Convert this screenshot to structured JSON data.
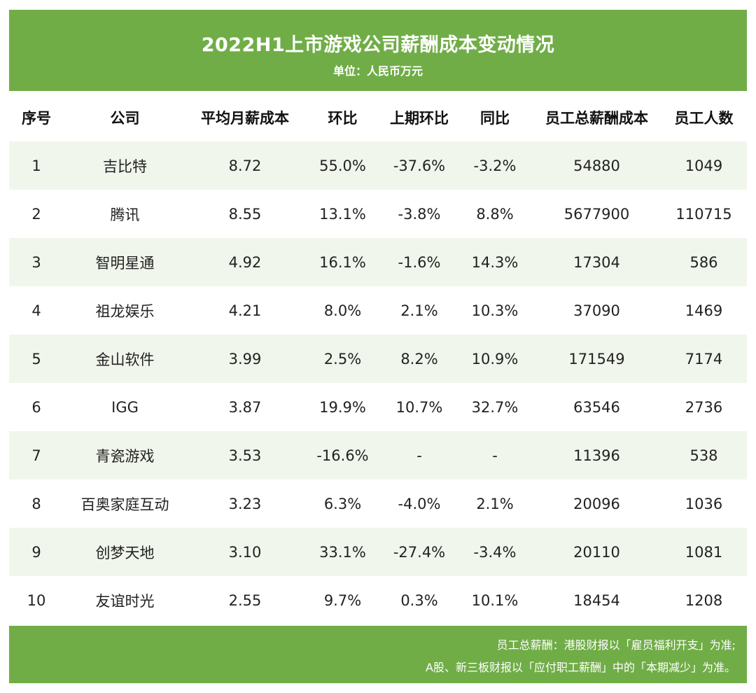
{
  "header": {
    "title": "2022H1上市游戏公司薪酬成本变动情况",
    "subtitle": "单位：人民币万元"
  },
  "table": {
    "columns": [
      "序号",
      "公司",
      "平均月薪成本",
      "环比",
      "上期环比",
      "同比",
      "员工总薪酬成本",
      "员工人数"
    ],
    "rows": [
      [
        "1",
        "吉比特",
        "8.72",
        "55.0%",
        "-37.6%",
        "-3.2%",
        "54880",
        "1049"
      ],
      [
        "2",
        "腾讯",
        "8.55",
        "13.1%",
        "-3.8%",
        "8.8%",
        "5677900",
        "110715"
      ],
      [
        "3",
        "智明星通",
        "4.92",
        "16.1%",
        "-1.6%",
        "14.3%",
        "17304",
        "586"
      ],
      [
        "4",
        "祖龙娱乐",
        "4.21",
        "8.0%",
        "2.1%",
        "10.3%",
        "37090",
        "1469"
      ],
      [
        "5",
        "金山软件",
        "3.99",
        "2.5%",
        "8.2%",
        "10.9%",
        "171549",
        "7174"
      ],
      [
        "6",
        "IGG",
        "3.87",
        "19.9%",
        "10.7%",
        "32.7%",
        "63546",
        "2736"
      ],
      [
        "7",
        "青瓷游戏",
        "3.53",
        "-16.6%",
        "-",
        "-",
        "11396",
        "538"
      ],
      [
        "8",
        "百奥家庭互动",
        "3.23",
        "6.3%",
        "-4.0%",
        "2.1%",
        "20096",
        "1036"
      ],
      [
        "9",
        "创梦天地",
        "3.10",
        "33.1%",
        "-27.4%",
        "-3.4%",
        "20110",
        "1081"
      ],
      [
        "10",
        "友谊时光",
        "2.55",
        "9.7%",
        "0.3%",
        "10.1%",
        "18454",
        "1208"
      ]
    ]
  },
  "footer": {
    "line1": "员工总薪酬：港股财报以「雇员福利开支」为准;",
    "line2": "A股、新三板财报以「应付职工薪酬」中的「本期减少」为准。"
  },
  "colors": {
    "accent": "#70ad47",
    "stripe": "#f0f6ec"
  }
}
